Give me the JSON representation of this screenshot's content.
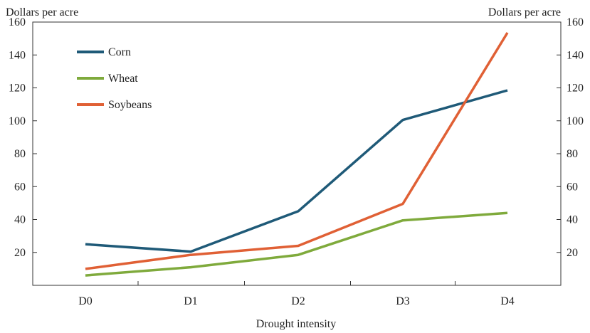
{
  "chart_data": {
    "type": "line",
    "xlabel": "Drought intensity",
    "ylabel_left": "Dollars per acre",
    "ylabel_right": "Dollars per acre",
    "categories": [
      "D0",
      "D1",
      "D2",
      "D3",
      "D4"
    ],
    "ylim": [
      0,
      160
    ],
    "yticks": [
      20,
      40,
      60,
      80,
      100,
      120,
      140,
      160
    ],
    "legend_position": "top-left",
    "grid": false,
    "series": [
      {
        "name": "Corn",
        "color": "#1f5a78",
        "values": [
          25,
          20.5,
          45,
          100.5,
          118.5
        ]
      },
      {
        "name": "Wheat",
        "color": "#7faa3c",
        "values": [
          6,
          11,
          18.5,
          39.5,
          44
        ]
      },
      {
        "name": "Soybeans",
        "color": "#e06035",
        "values": [
          10,
          18.5,
          24,
          49.5,
          153.5
        ]
      }
    ]
  }
}
